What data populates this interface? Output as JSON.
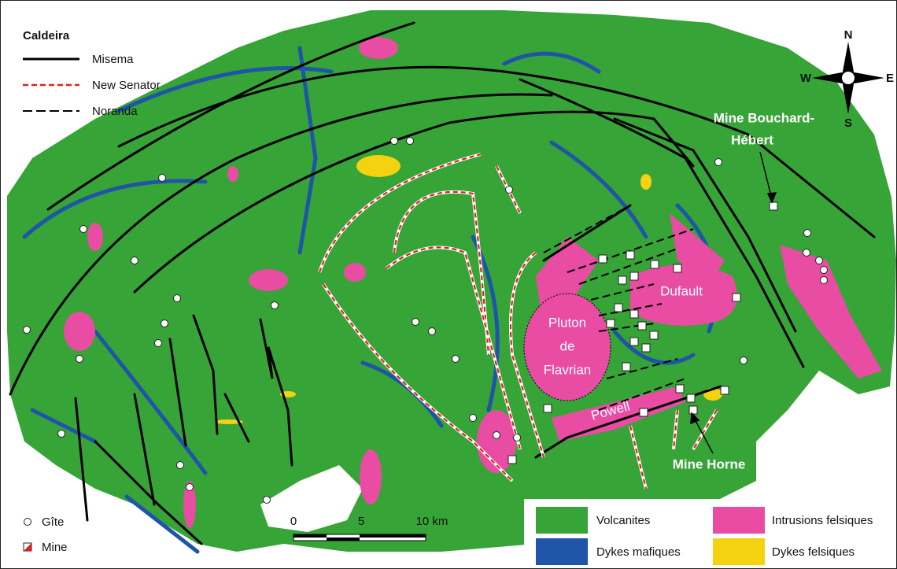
{
  "map": {
    "title": "Caldeira",
    "faults": [
      "Misema",
      "New Senator",
      "Noranda"
    ],
    "compass": {
      "n": "N",
      "s": "S",
      "e": "E",
      "w": "W"
    },
    "places": {
      "mine_bouchard": [
        "Mine Bouchard-",
        "Hébert"
      ],
      "dufault": "Dufault",
      "pluton": [
        "Pluton",
        "de",
        "Flavrian"
      ],
      "powell": "Powell",
      "mine_horne": "Mine Horne"
    },
    "symbols": [
      "Gîte",
      "Mine"
    ],
    "scale": [
      "0",
      "5",
      "10 km"
    ],
    "legend": [
      "Volcanites",
      "Intrusions felsiques",
      "Dykes mafiques",
      "Dykes felsiques"
    ]
  }
}
